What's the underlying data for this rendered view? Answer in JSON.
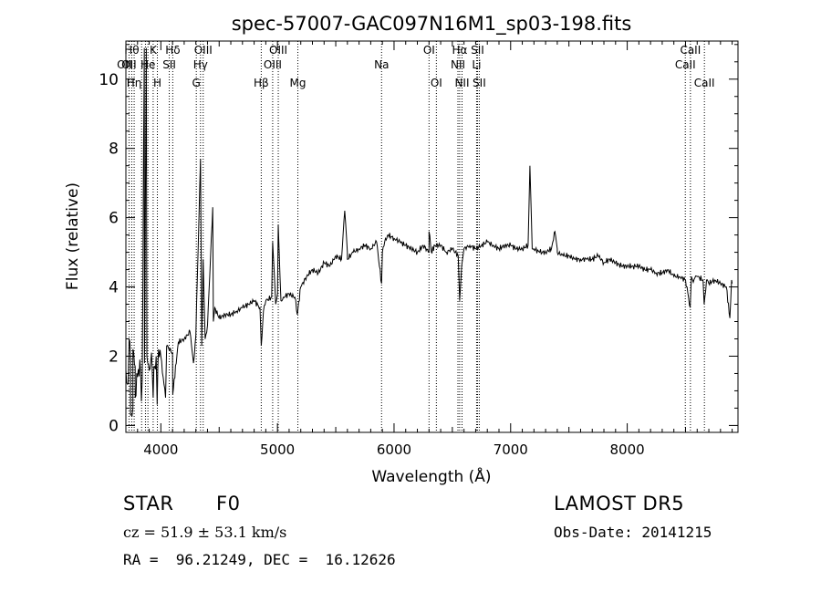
{
  "chart_data": {
    "type": "line",
    "title": "spec-57007-GAC097N16M1_sp03-198.fits",
    "xlabel": "Wavelength (Å)",
    "ylabel": "Flux (relative)",
    "xlim": [
      3700,
      8950
    ],
    "ylim": [
      -0.2,
      11.1
    ],
    "x_ticks": [
      4000,
      5000,
      6000,
      7000,
      8000
    ],
    "y_ticks": [
      0,
      2,
      4,
      6,
      8,
      10
    ],
    "grid": false,
    "series": [
      {
        "x": [
          3700,
          3720,
          3740,
          3760,
          3780,
          3800,
          3820,
          3840,
          3860,
          3880,
          3900,
          3920,
          3940,
          3960,
          3980,
          4000,
          4050,
          4100,
          4150,
          4200,
          4250,
          4300,
          4350,
          4400,
          4450,
          4500,
          4550,
          4600,
          4650,
          4700,
          4750,
          4800,
          4850,
          4900,
          4950,
          5000,
          5050,
          5100,
          5150,
          5200,
          5250,
          5300,
          5350,
          5400,
          5450,
          5500,
          5550,
          5600,
          5650,
          5700,
          5750,
          5800,
          5850,
          5900,
          5950,
          6000,
          6050,
          6100,
          6150,
          6200,
          6250,
          6300,
          6350,
          6400,
          6450,
          6500,
          6550,
          6600,
          6650,
          6700,
          6750,
          6800,
          6850,
          6900,
          6950,
          7000,
          7050,
          7100,
          7150,
          7200,
          7250,
          7300,
          7350,
          7400,
          7450,
          7500,
          7550,
          7600,
          7650,
          7700,
          7750,
          7800,
          7850,
          7900,
          7950,
          8000,
          8050,
          8100,
          8150,
          8200,
          8250,
          8300,
          8350,
          8400,
          8450,
          8500,
          8550,
          8600,
          8650,
          8700,
          8750,
          8800,
          8850,
          8900
        ],
        "y": [
          1.6,
          1.2,
          1.8,
          0.5,
          1.7,
          1.4,
          1.9,
          1.3,
          1.8,
          2.0,
          1.6,
          2.1,
          1.7,
          2.0,
          2.2,
          2.0,
          2.3,
          2.1,
          2.4,
          2.5,
          2.7,
          2.6,
          2.8,
          2.9,
          3.0,
          3.1,
          3.2,
          3.2,
          3.3,
          3.4,
          3.5,
          3.6,
          3.4,
          3.6,
          3.7,
          3.8,
          3.7,
          3.8,
          3.7,
          4.0,
          4.3,
          4.5,
          4.4,
          4.7,
          4.6,
          4.9,
          4.8,
          5.0,
          5.0,
          5.1,
          5.2,
          5.1,
          5.3,
          5.0,
          5.5,
          5.4,
          5.3,
          5.2,
          5.1,
          5.0,
          5.2,
          5.0,
          5.2,
          5.2,
          5.0,
          5.1,
          4.9,
          5.1,
          5.2,
          5.1,
          5.2,
          5.3,
          5.2,
          5.1,
          5.2,
          5.2,
          5.1,
          5.1,
          5.2,
          5.1,
          5.0,
          5.0,
          5.1,
          5.1,
          4.9,
          4.9,
          4.8,
          4.8,
          4.8,
          4.8,
          4.9,
          4.7,
          4.8,
          4.7,
          4.6,
          4.6,
          4.6,
          4.6,
          4.5,
          4.5,
          4.4,
          4.4,
          4.5,
          4.3,
          4.3,
          4.2,
          4.3,
          4.3,
          4.2,
          4.1,
          4.2,
          4.1,
          4.0,
          4.1
        ]
      }
    ],
    "features": [
      {
        "x": 3727,
        "y": 2.5
      },
      {
        "x": 3740,
        "y": 0.3
      },
      {
        "x": 3760,
        "y": 2.2
      },
      {
        "x": 3780,
        "y": 0.8
      },
      {
        "x": 3833,
        "y": 0.7
      },
      {
        "x": 3858,
        "y": 10.9
      },
      {
        "x": 3875,
        "y": 10.9
      },
      {
        "x": 3934,
        "y": 0.8
      },
      {
        "x": 3968,
        "y": 0.6
      },
      {
        "x": 4040,
        "y": 0.8
      },
      {
        "x": 4102,
        "y": 0.9
      },
      {
        "x": 4280,
        "y": 1.8
      },
      {
        "x": 4340,
        "y": 7.7
      },
      {
        "x": 4350,
        "y": 2.3
      },
      {
        "x": 4363,
        "y": 4.8
      },
      {
        "x": 4380,
        "y": 2.5
      },
      {
        "x": 4445,
        "y": 6.3
      },
      {
        "x": 4462,
        "y": 3.4
      },
      {
        "x": 4861,
        "y": 2.3
      },
      {
        "x": 4880,
        "y": 3.3
      },
      {
        "x": 4959,
        "y": 5.3
      },
      {
        "x": 4985,
        "y": 3.5
      },
      {
        "x": 5007,
        "y": 5.8
      },
      {
        "x": 5030,
        "y": 3.6
      },
      {
        "x": 5170,
        "y": 3.2
      },
      {
        "x": 5577,
        "y": 6.2
      },
      {
        "x": 5600,
        "y": 4.8
      },
      {
        "x": 5893,
        "y": 4.1
      },
      {
        "x": 5920,
        "y": 5.3
      },
      {
        "x": 6300,
        "y": 5.6
      },
      {
        "x": 6320,
        "y": 5.0
      },
      {
        "x": 6563,
        "y": 3.6
      },
      {
        "x": 6580,
        "y": 4.6
      },
      {
        "x": 6600,
        "y": 5.1
      },
      {
        "x": 7165,
        "y": 7.5
      },
      {
        "x": 7185,
        "y": 5.1
      },
      {
        "x": 7380,
        "y": 5.6
      },
      {
        "x": 7400,
        "y": 5.0
      },
      {
        "x": 8540,
        "y": 3.4
      },
      {
        "x": 8560,
        "y": 4.2
      },
      {
        "x": 8660,
        "y": 3.5
      },
      {
        "x": 8680,
        "y": 4.2
      },
      {
        "x": 8880,
        "y": 3.1
      },
      {
        "x": 8895,
        "y": 4.2
      }
    ],
    "line_marks": [
      {
        "x": 3727,
        "labels": [
          "OII"
        ],
        "row": 2
      },
      {
        "x": 3750,
        "labels": [
          "Hθ",
          "OII"
        ],
        "row": 1
      },
      {
        "x": 3771,
        "labels": [
          "Hη"
        ],
        "row": 3
      },
      {
        "x": 3835,
        "labels": [],
        "row": 0
      },
      {
        "x": 3868,
        "labels": [],
        "row": 0
      },
      {
        "x": 3889,
        "labels": [
          "He"
        ],
        "row": 2
      },
      {
        "x": 3934,
        "labels": [
          "K"
        ],
        "row": 1
      },
      {
        "x": 3970,
        "labels": [
          "H"
        ],
        "row": 3
      },
      {
        "x": 4072,
        "labels": [
          "SII"
        ],
        "row": 2
      },
      {
        "x": 4102,
        "labels": [
          "Hδ"
        ],
        "row": 1
      },
      {
        "x": 4304,
        "labels": [
          "G"
        ],
        "row": 3
      },
      {
        "x": 4340,
        "labels": [
          "Hγ"
        ],
        "row": 2
      },
      {
        "x": 4363,
        "labels": [
          "OIII"
        ],
        "row": 1
      },
      {
        "x": 4861,
        "labels": [
          "Hβ"
        ],
        "row": 3
      },
      {
        "x": 4959,
        "labels": [
          "OIII"
        ],
        "row": 2
      },
      {
        "x": 5007,
        "labels": [
          "OIII"
        ],
        "row": 1
      },
      {
        "x": 5175,
        "labels": [
          "Mg"
        ],
        "row": 3
      },
      {
        "x": 5893,
        "labels": [
          "Na"
        ],
        "row": 2
      },
      {
        "x": 6300,
        "labels": [
          "OI"
        ],
        "row": 1
      },
      {
        "x": 6363,
        "labels": [
          "OI"
        ],
        "row": 3
      },
      {
        "x": 6548,
        "labels": [
          "NII"
        ],
        "row": 2
      },
      {
        "x": 6563,
        "labels": [
          "Hα"
        ],
        "row": 1
      },
      {
        "x": 6583,
        "labels": [
          "NII"
        ],
        "row": 3
      },
      {
        "x": 6708,
        "labels": [
          "Li"
        ],
        "row": 2
      },
      {
        "x": 6716,
        "labels": [
          "SII"
        ],
        "row": 1
      },
      {
        "x": 6731,
        "labels": [
          "SII"
        ],
        "row": 3
      },
      {
        "x": 8498,
        "labels": [
          "CaII"
        ],
        "row": 2
      },
      {
        "x": 8542,
        "labels": [
          "CaII"
        ],
        "row": 1
      },
      {
        "x": 8662,
        "labels": [
          "CaII"
        ],
        "row": 3
      }
    ]
  },
  "info": {
    "class": "STAR",
    "subclass": "F0",
    "survey": "LAMOST DR5",
    "redshift": "cz = 51.9 ± 53.1 km/s",
    "obs_date": "Obs-Date: 20141215",
    "coords": "RA =  96.21249, DEC =  16.12626"
  }
}
